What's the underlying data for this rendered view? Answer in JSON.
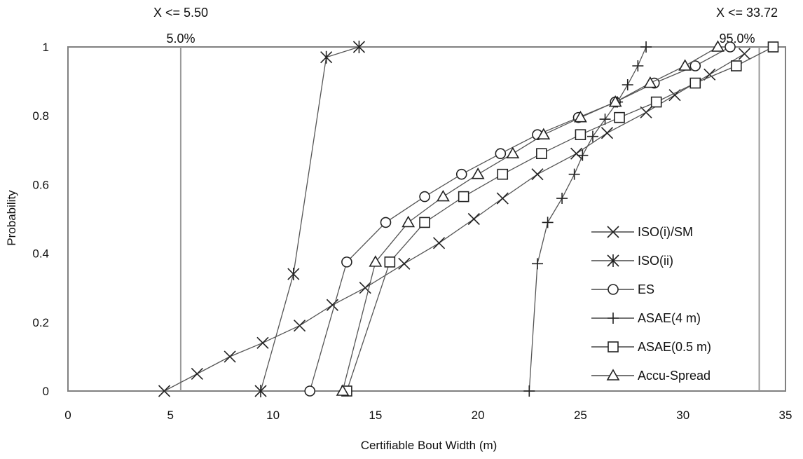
{
  "chart_data": {
    "type": "line",
    "xlabel": "Certifiable Bout Width (m)",
    "ylabel": "Probability",
    "xlim": [
      0,
      35
    ],
    "ylim": [
      0,
      1
    ],
    "xticks": [
      "0",
      "5",
      "10",
      "15",
      "20",
      "25",
      "30",
      "35"
    ],
    "yticks": [
      "0",
      "0.2",
      "0.4",
      "0.6",
      "0.8",
      "1"
    ],
    "grid": false,
    "legend": "right",
    "annotations": [
      {
        "id": "left",
        "label": "X <= 5.50",
        "percent": "5.0%",
        "x": 5.5
      },
      {
        "id": "right",
        "label": "X <= 33.72",
        "percent": "95.0%",
        "x": 33.72
      }
    ],
    "series": [
      {
        "name": "ISO(i)/SM",
        "marker": "x",
        "points": [
          [
            4.7,
            0.0
          ],
          [
            6.3,
            0.05
          ],
          [
            7.9,
            0.1
          ],
          [
            9.5,
            0.14
          ],
          [
            11.3,
            0.19
          ],
          [
            12.9,
            0.25
          ],
          [
            14.5,
            0.3
          ],
          [
            16.4,
            0.37
          ],
          [
            18.1,
            0.43
          ],
          [
            19.8,
            0.5
          ],
          [
            21.2,
            0.56
          ],
          [
            22.9,
            0.63
          ],
          [
            24.8,
            0.69
          ],
          [
            26.3,
            0.75
          ],
          [
            28.2,
            0.81
          ],
          [
            29.6,
            0.86
          ],
          [
            31.3,
            0.92
          ],
          [
            33.0,
            0.98
          ]
        ]
      },
      {
        "name": "ISO(ii)",
        "marker": "asterisk",
        "points": [
          [
            9.4,
            0.0
          ],
          [
            11.0,
            0.34
          ],
          [
            12.6,
            0.97
          ],
          [
            14.2,
            1.0
          ]
        ]
      },
      {
        "name": "ES",
        "marker": "circle",
        "points": [
          [
            11.8,
            0.0
          ],
          [
            13.6,
            0.375
          ],
          [
            15.5,
            0.49
          ],
          [
            17.4,
            0.565
          ],
          [
            19.2,
            0.63
          ],
          [
            21.1,
            0.69
          ],
          [
            22.9,
            0.745
          ],
          [
            24.9,
            0.795
          ],
          [
            26.7,
            0.84
          ],
          [
            28.6,
            0.895
          ],
          [
            30.6,
            0.945
          ],
          [
            32.3,
            1.0
          ]
        ]
      },
      {
        "name": "ASAE(4 m)",
        "marker": "plus",
        "points": [
          [
            22.5,
            0.0
          ],
          [
            22.9,
            0.37
          ],
          [
            23.4,
            0.49
          ],
          [
            24.1,
            0.56
          ],
          [
            24.7,
            0.63
          ],
          [
            25.1,
            0.685
          ],
          [
            25.6,
            0.74
          ],
          [
            26.2,
            0.79
          ],
          [
            26.8,
            0.84
          ],
          [
            27.3,
            0.89
          ],
          [
            27.8,
            0.945
          ],
          [
            28.2,
            1.0
          ]
        ]
      },
      {
        "name": "ASAE(0.5 m)",
        "marker": "square",
        "points": [
          [
            13.6,
            0.0
          ],
          [
            15.7,
            0.375
          ],
          [
            17.4,
            0.49
          ],
          [
            19.3,
            0.565
          ],
          [
            21.2,
            0.63
          ],
          [
            23.1,
            0.69
          ],
          [
            25.0,
            0.745
          ],
          [
            26.9,
            0.795
          ],
          [
            28.7,
            0.84
          ],
          [
            30.6,
            0.895
          ],
          [
            32.6,
            0.945
          ],
          [
            34.4,
            1.0
          ]
        ]
      },
      {
        "name": "Accu-Spread",
        "marker": "triangle",
        "points": [
          [
            13.4,
            0.0
          ],
          [
            15.0,
            0.375
          ],
          [
            16.6,
            0.49
          ],
          [
            18.3,
            0.565
          ],
          [
            20.0,
            0.63
          ],
          [
            21.7,
            0.69
          ],
          [
            23.2,
            0.745
          ],
          [
            25.0,
            0.795
          ],
          [
            26.7,
            0.84
          ],
          [
            28.4,
            0.895
          ],
          [
            30.1,
            0.945
          ],
          [
            31.7,
            1.0
          ]
        ]
      }
    ]
  }
}
